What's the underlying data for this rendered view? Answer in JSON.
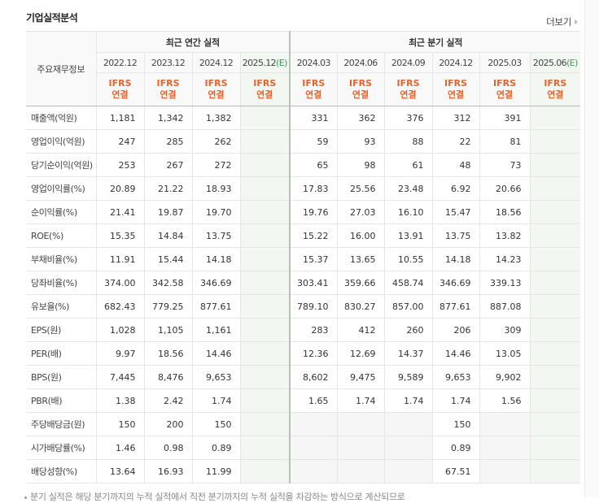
{
  "section": {
    "title": "기업실적분석",
    "more_label": "더보기"
  },
  "table": {
    "row_header_label": "주요재무정보",
    "groups": {
      "annual": "최근 연간 실적",
      "quarterly": "최근 분기 실적"
    },
    "periods": [
      {
        "label": "2022.12",
        "estimate": ""
      },
      {
        "label": "2023.12",
        "estimate": ""
      },
      {
        "label": "2024.12",
        "estimate": ""
      },
      {
        "label": "2025.12",
        "estimate": "(E)"
      },
      {
        "label": "2024.03",
        "estimate": ""
      },
      {
        "label": "2024.06",
        "estimate": ""
      },
      {
        "label": "2024.09",
        "estimate": ""
      },
      {
        "label": "2024.12",
        "estimate": ""
      },
      {
        "label": "2025.03",
        "estimate": ""
      },
      {
        "label": "2025.06",
        "estimate": "(E)"
      }
    ],
    "ifrs_line1": "IFRS",
    "ifrs_line2": "연결",
    "rows": [
      {
        "label": "매출액(억원)",
        "values": [
          "1,181",
          "1,342",
          "1,382",
          "",
          "331",
          "362",
          "376",
          "312",
          "391",
          ""
        ]
      },
      {
        "label": "영업이익(억원)",
        "values": [
          "247",
          "285",
          "262",
          "",
          "59",
          "93",
          "88",
          "22",
          "81",
          ""
        ]
      },
      {
        "label": "당기순이익(억원)",
        "values": [
          "253",
          "267",
          "272",
          "",
          "65",
          "98",
          "61",
          "48",
          "73",
          ""
        ]
      },
      {
        "label": "영업이익률(%)",
        "values": [
          "20.89",
          "21.22",
          "18.93",
          "",
          "17.83",
          "25.56",
          "23.48",
          "6.92",
          "20.66",
          ""
        ]
      },
      {
        "label": "순이익률(%)",
        "values": [
          "21.41",
          "19.87",
          "19.70",
          "",
          "19.76",
          "27.03",
          "16.10",
          "15.47",
          "18.56",
          ""
        ]
      },
      {
        "label": "ROE(%)",
        "values": [
          "15.35",
          "14.84",
          "13.75",
          "",
          "15.22",
          "16.00",
          "13.91",
          "13.75",
          "13.82",
          ""
        ]
      },
      {
        "label": "부채비율(%)",
        "values": [
          "11.91",
          "15.44",
          "14.18",
          "",
          "15.37",
          "13.65",
          "10.55",
          "14.18",
          "14.23",
          ""
        ]
      },
      {
        "label": "당좌비율(%)",
        "values": [
          "374.00",
          "342.58",
          "346.69",
          "",
          "303.41",
          "359.66",
          "458.74",
          "346.69",
          "339.13",
          ""
        ]
      },
      {
        "label": "유보율(%)",
        "values": [
          "682.43",
          "779.25",
          "877.61",
          "",
          "789.10",
          "830.27",
          "857.00",
          "877.61",
          "887.08",
          ""
        ]
      },
      {
        "label": "EPS(원)",
        "values": [
          "1,028",
          "1,105",
          "1,161",
          "",
          "283",
          "412",
          "260",
          "206",
          "309",
          ""
        ]
      },
      {
        "label": "PER(배)",
        "values": [
          "9.97",
          "18.56",
          "14.46",
          "",
          "12.36",
          "12.69",
          "14.37",
          "14.46",
          "13.05",
          ""
        ]
      },
      {
        "label": "BPS(원)",
        "values": [
          "7,445",
          "8,476",
          "9,653",
          "",
          "8,602",
          "9,475",
          "9,589",
          "9,653",
          "9,902",
          ""
        ]
      },
      {
        "label": "PBR(배)",
        "values": [
          "1.38",
          "2.42",
          "1.74",
          "",
          "1.65",
          "1.74",
          "1.74",
          "1.74",
          "1.56",
          ""
        ]
      },
      {
        "label": "주당배당금(원)",
        "values": [
          "150",
          "200",
          "150",
          "",
          "",
          "",
          "",
          "150",
          "",
          ""
        ]
      },
      {
        "label": "시가배당률(%)",
        "values": [
          "1.46",
          "0.98",
          "0.89",
          "",
          "",
          "",
          "",
          "0.89",
          "",
          ""
        ]
      },
      {
        "label": "배당성향(%)",
        "values": [
          "13.64",
          "16.93",
          "11.99",
          "",
          "",
          "",
          "",
          "67.51",
          "",
          ""
        ]
      }
    ]
  },
  "footnote": "분기 실적은 해당 분기까지의 누적 실적에서 직전 분기까지의 누적 실적을 차감하는 방식으로 계산되므로"
}
